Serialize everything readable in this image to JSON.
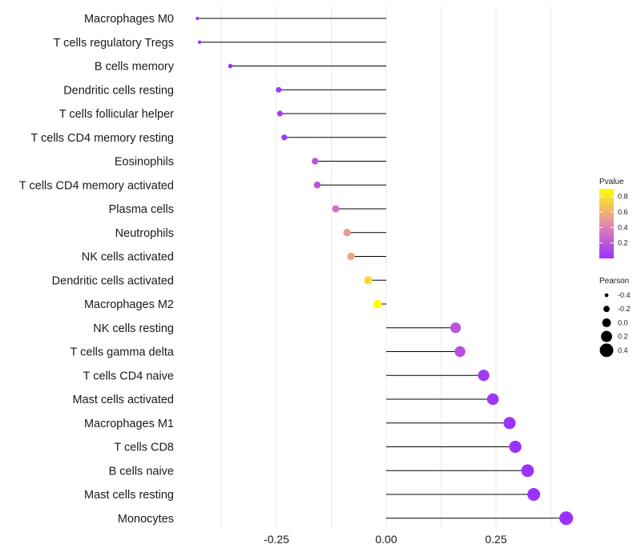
{
  "chart_data": {
    "type": "lollipop",
    "title": "",
    "xlabel": "",
    "ylabel": "",
    "xlim": [
      -0.46,
      0.45
    ],
    "xticks": [
      -0.25,
      0.0,
      0.25
    ],
    "xtick_labels": [
      "-0.25",
      "0.00",
      "0.25"
    ],
    "grid": true,
    "categories": [
      "Macrophages M0",
      "T cells regulatory  Tregs",
      "B cells memory",
      "Dendritic cells resting",
      "T cells follicular helper",
      "T cells CD4 memory resting",
      "Eosinophils",
      "T cells CD4 memory activated",
      "Plasma cells",
      "Neutrophils",
      "NK cells activated",
      "Dendritic cells activated",
      "Macrophages M2",
      "NK cells resting",
      "T cells gamma delta",
      "T cells CD4 naive",
      "Mast cells activated",
      "Macrophages M1",
      "T cells CD8",
      "B cells naive",
      "Mast cells resting",
      "Monocytes"
    ],
    "pearson": [
      -0.43,
      -0.425,
      -0.355,
      -0.245,
      -0.242,
      -0.232,
      -0.162,
      -0.157,
      -0.115,
      -0.089,
      -0.08,
      -0.041,
      -0.02,
      0.158,
      0.168,
      0.222,
      0.243,
      0.281,
      0.294,
      0.322,
      0.336,
      0.41
    ],
    "pvalue": [
      0.001,
      0.001,
      0.005,
      0.04,
      0.04,
      0.05,
      0.17,
      0.17,
      0.32,
      0.5,
      0.55,
      0.75,
      0.9,
      0.18,
      0.15,
      0.05,
      0.03,
      0.01,
      0.01,
      0.005,
      0.005,
      0.001
    ],
    "legend": {
      "position": "right",
      "pvalue_title": "Pvalue",
      "pvalue_ticks": [
        0.2,
        0.4,
        0.6,
        0.8
      ],
      "pvalue_tick_labels": [
        "0.2",
        "0.4",
        "0.6",
        "0.8"
      ],
      "pvalue_range": [
        0.0,
        0.9
      ],
      "pearson_title": "Pearson",
      "pearson_values": [
        -0.4,
        -0.2,
        0.0,
        0.2,
        0.4
      ],
      "pearson_labels": [
        "-0.4",
        "-0.2",
        "0.0",
        "0.2",
        "0.4"
      ]
    },
    "colors": {
      "low": "#9b30ff",
      "mid": "#e58cab",
      "high": "#ffff00",
      "stem": "#000000",
      "grid": "#ebebeb"
    }
  }
}
